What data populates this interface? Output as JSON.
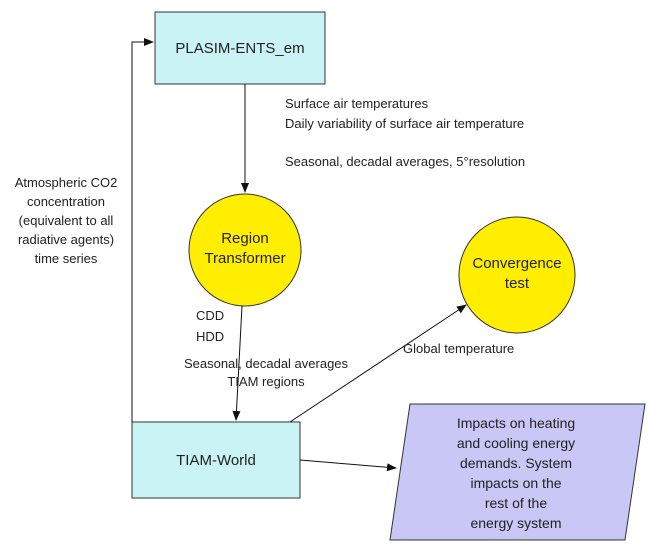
{
  "nodes": [
    {
      "label": "PLASIM-ENTS_em"
    },
    {
      "label": [
        "Region",
        "Transformer"
      ]
    },
    {
      "label": [
        "Convergence",
        "test"
      ]
    },
    {
      "label": "TIAM-World"
    },
    {
      "label": [
        "Impacts on heating",
        "and cooling energy",
        "demands. System",
        "impacts on the",
        "rest of the",
        "energy system"
      ]
    }
  ],
  "edges": [
    {
      "label": [
        "Surface air temperatures",
        "Daily variability of surface air temperature",
        "Seasonal, decadal averages, 5°resolution"
      ]
    },
    {
      "label": [
        "CDD",
        "HDD",
        "Seasonal, decadal averages",
        "TIAM regions"
      ]
    },
    {
      "label": [
        "Global temperature"
      ]
    },
    {
      "label": [
        "Atmospheric CO2",
        "concentration",
        "(equivalent to all",
        "radiative agents)",
        "time series"
      ]
    }
  ]
}
